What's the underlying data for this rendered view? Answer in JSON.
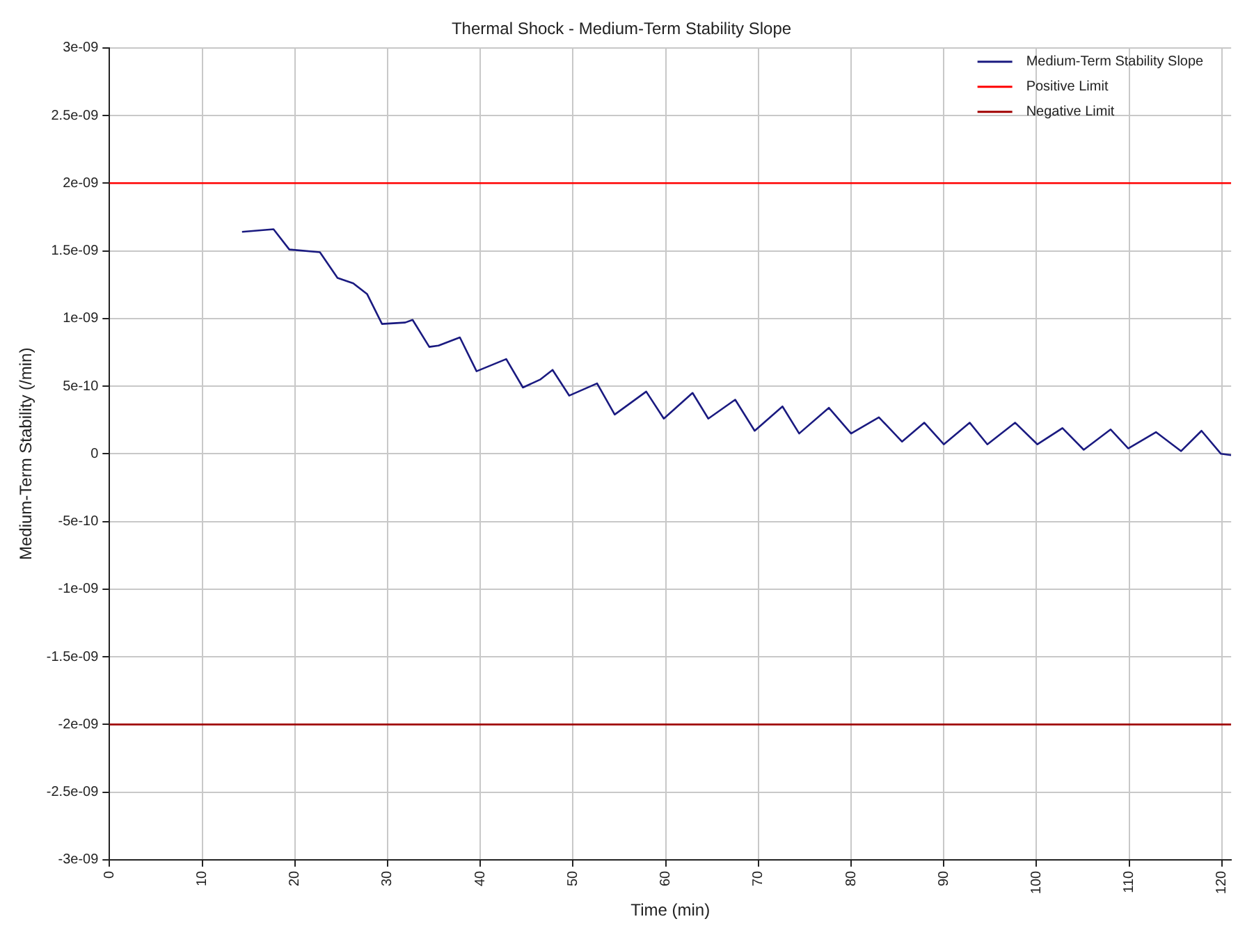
{
  "chart_data": {
    "type": "line",
    "title": "Thermal Shock - Medium-Term Stability Slope",
    "xlabel": "Time (min)",
    "ylabel": "Medium-Term Stability (/min)",
    "xlim": [
      0,
      121
    ],
    "xticks": [
      0,
      10,
      20,
      30,
      40,
      50,
      60,
      70,
      80,
      90,
      100,
      110,
      120
    ],
    "ylim": [
      -3e-09,
      3e-09
    ],
    "yticks": [
      {
        "value": 3e-09,
        "label": "3e-09"
      },
      {
        "value": 2.5e-09,
        "label": "2.5e-09"
      },
      {
        "value": 2e-09,
        "label": "2e-09"
      },
      {
        "value": 1.5e-09,
        "label": "1.5e-09"
      },
      {
        "value": 1e-09,
        "label": "1e-09"
      },
      {
        "value": 5e-10,
        "label": "5e-10"
      },
      {
        "value": 0,
        "label": "0"
      },
      {
        "value": -5e-10,
        "label": "-5e-10"
      },
      {
        "value": -1e-09,
        "label": "-1e-09"
      },
      {
        "value": -1.5e-09,
        "label": "-1.5e-09"
      },
      {
        "value": -2e-09,
        "label": "-2e-09"
      },
      {
        "value": -2.5e-09,
        "label": "-2.5e-09"
      },
      {
        "value": -3e-09,
        "label": "-3e-09"
      }
    ],
    "grid": true,
    "legend": "top right",
    "line_style": "solid",
    "marker": "none",
    "series": [
      {
        "name": "Medium-Term Stability Slope",
        "color": "#1a1a80",
        "x": [
          14.3,
          17.7,
          19.4,
          22.7,
          24.6,
          26.3,
          27.8,
          29.4,
          31.9,
          32.7,
          34.5,
          35.5,
          37.8,
          39.6,
          42.8,
          44.6,
          46.5,
          47.8,
          49.6,
          52.6,
          54.5,
          57.9,
          59.8,
          62.9,
          64.6,
          67.5,
          69.6,
          72.6,
          74.4,
          77.6,
          80,
          83,
          85.5,
          87.9,
          90,
          92.8,
          94.7,
          97.7,
          100.1,
          102.8,
          105.1,
          108,
          109.9,
          112.9,
          115.6,
          117.8,
          119.9,
          121
        ],
        "values": [
          1.64e-09,
          1.66e-09,
          1.51e-09,
          1.49e-09,
          1.3e-09,
          1.26e-09,
          1.18e-09,
          9.6e-10,
          9.7e-10,
          9.9e-10,
          7.9e-10,
          8e-10,
          8.6e-10,
          6.1e-10,
          7e-10,
          4.9e-10,
          5.5e-10,
          6.2e-10,
          4.3e-10,
          5.2e-10,
          2.9e-10,
          4.6e-10,
          2.6e-10,
          4.5e-10,
          2.6e-10,
          4e-10,
          1.7e-10,
          3.5e-10,
          1.5e-10,
          3.4e-10,
          1.5e-10,
          2.7e-10,
          9e-11,
          2.3e-10,
          7e-11,
          2.3e-10,
          7e-11,
          2.3e-10,
          7e-11,
          1.9e-10,
          3e-11,
          1.8e-10,
          4e-11,
          1.6e-10,
          2e-11,
          1.7e-10,
          0,
          -1e-11
        ]
      },
      {
        "name": "Positive Limit",
        "color": "#ff0000",
        "x": [
          0,
          121
        ],
        "values": [
          2e-09,
          2e-09
        ]
      },
      {
        "name": "Negative Limit",
        "color": "#a00000",
        "x": [
          0,
          121
        ],
        "values": [
          -2e-09,
          -2e-09
        ]
      }
    ]
  }
}
